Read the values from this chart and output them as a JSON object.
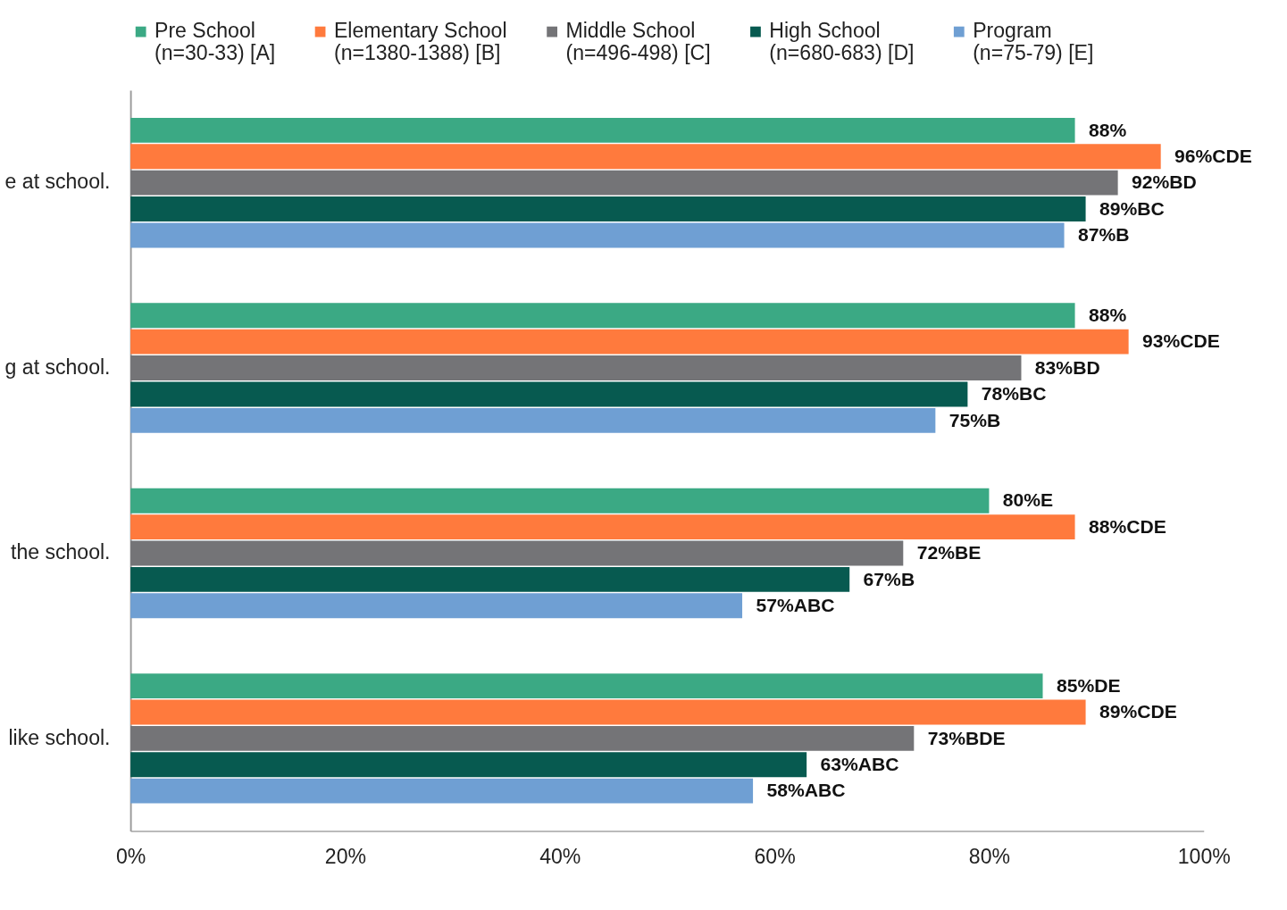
{
  "chart_data": {
    "type": "bar",
    "orientation": "horizontal",
    "categories": [
      "e at school.",
      "g at school.",
      "the school.",
      "like school."
    ],
    "series": [
      {
        "name": "Pre School\n(n=30-33) [A]",
        "color": "#3ba984",
        "values": [
          88,
          88,
          80,
          85
        ],
        "value_labels": [
          "88%",
          "88%",
          "80%E",
          "85%DE"
        ]
      },
      {
        "name": "Elementary School\n(n=1380-1388) [B]",
        "color": "#ff7a3d",
        "values": [
          96,
          93,
          88,
          89
        ],
        "value_labels": [
          "96%CDE",
          "93%CDE",
          "88%CDE",
          "89%CDE"
        ]
      },
      {
        "name": "Middle School\n(n=496-498) [C]",
        "color": "#747477",
        "values": [
          92,
          83,
          72,
          73
        ],
        "value_labels": [
          "92%BD",
          "83%BD",
          "72%BE",
          "73%BDE"
        ]
      },
      {
        "name": "High School\n(n=680-683) [D]",
        "color": "#075a50",
        "values": [
          89,
          78,
          67,
          63
        ],
        "value_labels": [
          "89%BC",
          "78%BC",
          "67%B",
          "63%ABC"
        ]
      },
      {
        "name": "Program\n(n=75-79) [E]",
        "color": "#6f9fd3",
        "values": [
          87,
          75,
          57,
          58
        ],
        "value_labels": [
          "87%B",
          "75%B",
          "57%ABC",
          "58%ABC"
        ]
      }
    ],
    "xlim": [
      0,
      100
    ],
    "xticks": [
      {
        "value": 0,
        "label": "0%"
      },
      {
        "value": 20,
        "label": "20%"
      },
      {
        "value": 40,
        "label": "40%"
      },
      {
        "value": 60,
        "label": "60%"
      },
      {
        "value": 80,
        "label": "80%"
      },
      {
        "value": 100,
        "label": "100%"
      }
    ],
    "grid": false,
    "legend": "top left"
  }
}
